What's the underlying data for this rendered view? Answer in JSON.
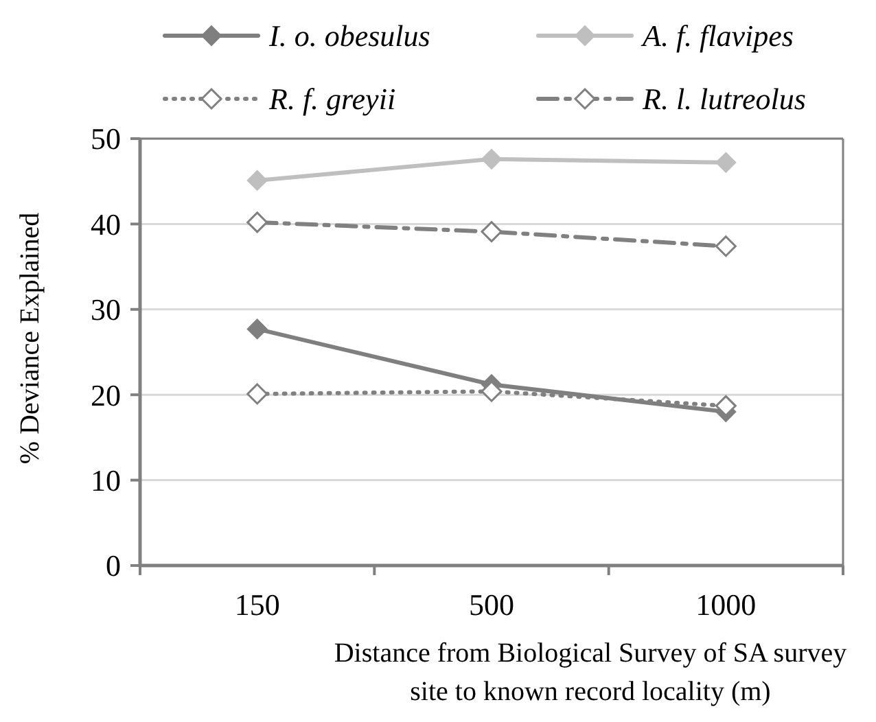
{
  "chart_data": {
    "type": "line",
    "categories": [
      "150",
      "500",
      "1000"
    ],
    "xlabel": "Distance from Biological Survey of SA survey\nsite to known record locality (m)",
    "ylabel": "% Deviance Explained",
    "ylim": [
      0,
      50
    ],
    "yticks": [
      0,
      10,
      20,
      30,
      40,
      50
    ],
    "grid": "y",
    "legend": "top",
    "marker": "diamond",
    "series": [
      {
        "name": "I. o. obesulus",
        "color": "#7f7f7f",
        "line_style": "solid",
        "values": [
          27.7,
          21.2,
          18.0
        ]
      },
      {
        "name": "A. f. flavipes",
        "color": "#bfbfbf",
        "line_style": "solid",
        "values": [
          45.1,
          47.6,
          47.2
        ]
      },
      {
        "name": "R. f. greyii",
        "color": "#808080",
        "line_style": "dotted",
        "values": [
          20.1,
          20.4,
          18.7
        ]
      },
      {
        "name": "R. l. lutreolus",
        "color": "#808080",
        "line_style": "dashed",
        "values": [
          40.2,
          39.1,
          37.4
        ]
      }
    ]
  }
}
